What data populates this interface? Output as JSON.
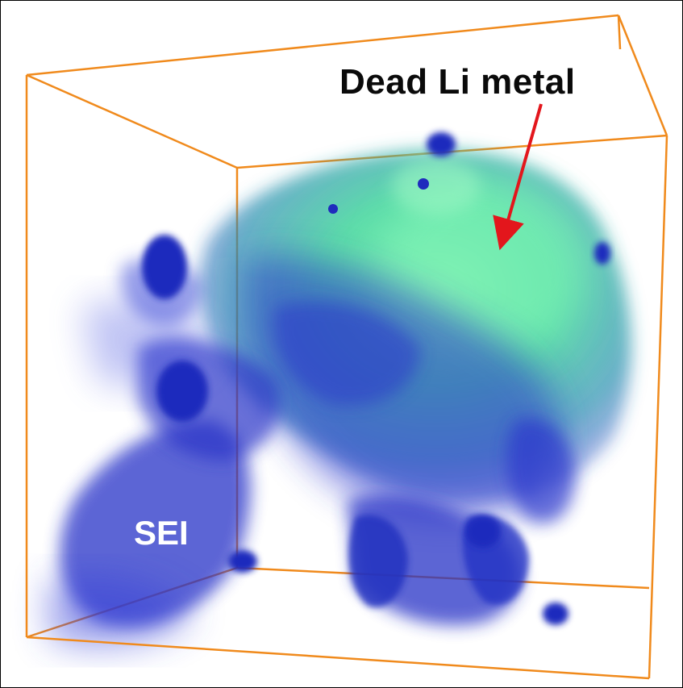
{
  "labels": {
    "dead_li_metal": "Dead Li metal",
    "sei": "SEI"
  },
  "colors": {
    "box_edges": "#f08a1c",
    "sei_blue": "#2a2fc4",
    "dead_li_green": "#4fe39a",
    "arrow": "#e3161c",
    "border": "#000000",
    "background": "#ffffff"
  }
}
